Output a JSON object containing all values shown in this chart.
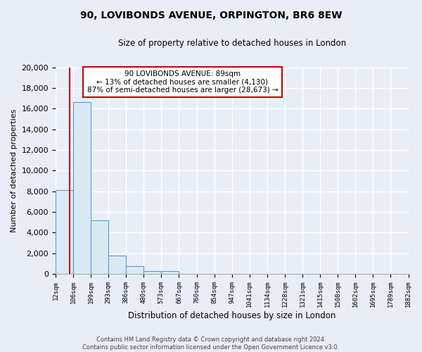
{
  "title": "90, LOVIBONDS AVENUE, ORPINGTON, BR6 8EW",
  "subtitle": "Size of property relative to detached houses in London",
  "xlabel": "Distribution of detached houses by size in London",
  "ylabel": "Number of detached properties",
  "bar_fill_color": "#daeaf5",
  "bar_edge_color": "#5b9bd5",
  "annotation_box_edge": "#cc0000",
  "property_line_color": "#cc0000",
  "bin_labels": [
    "12sqm",
    "106sqm",
    "199sqm",
    "293sqm",
    "386sqm",
    "480sqm",
    "573sqm",
    "667sqm",
    "760sqm",
    "854sqm",
    "947sqm",
    "1041sqm",
    "1134sqm",
    "1228sqm",
    "1321sqm",
    "1415sqm",
    "1508sqm",
    "1602sqm",
    "1695sqm",
    "1789sqm",
    "1882sqm"
  ],
  "bar_values": [
    8100,
    16600,
    5200,
    1800,
    750,
    300,
    250,
    0,
    0,
    0,
    0,
    0,
    0,
    0,
    0,
    0,
    0,
    0,
    0,
    0
  ],
  "ylim": [
    0,
    20000
  ],
  "yticks": [
    0,
    2000,
    4000,
    6000,
    8000,
    10000,
    12000,
    14000,
    16000,
    18000,
    20000
  ],
  "property_label": "90 LOVIBONDS AVENUE: 89sqm",
  "ann_line1": "← 13% of detached houses are smaller (4,130)",
  "ann_line2": "87% of semi-detached houses are larger (28,673) →",
  "footer1": "Contains HM Land Registry data © Crown copyright and database right 2024.",
  "footer2": "Contains public sector information licensed under the Open Government Licence v3.0.",
  "bg_color": "#e8eef7",
  "plot_bg_color": "#e8eef7",
  "grid_color": "#ffffff"
}
